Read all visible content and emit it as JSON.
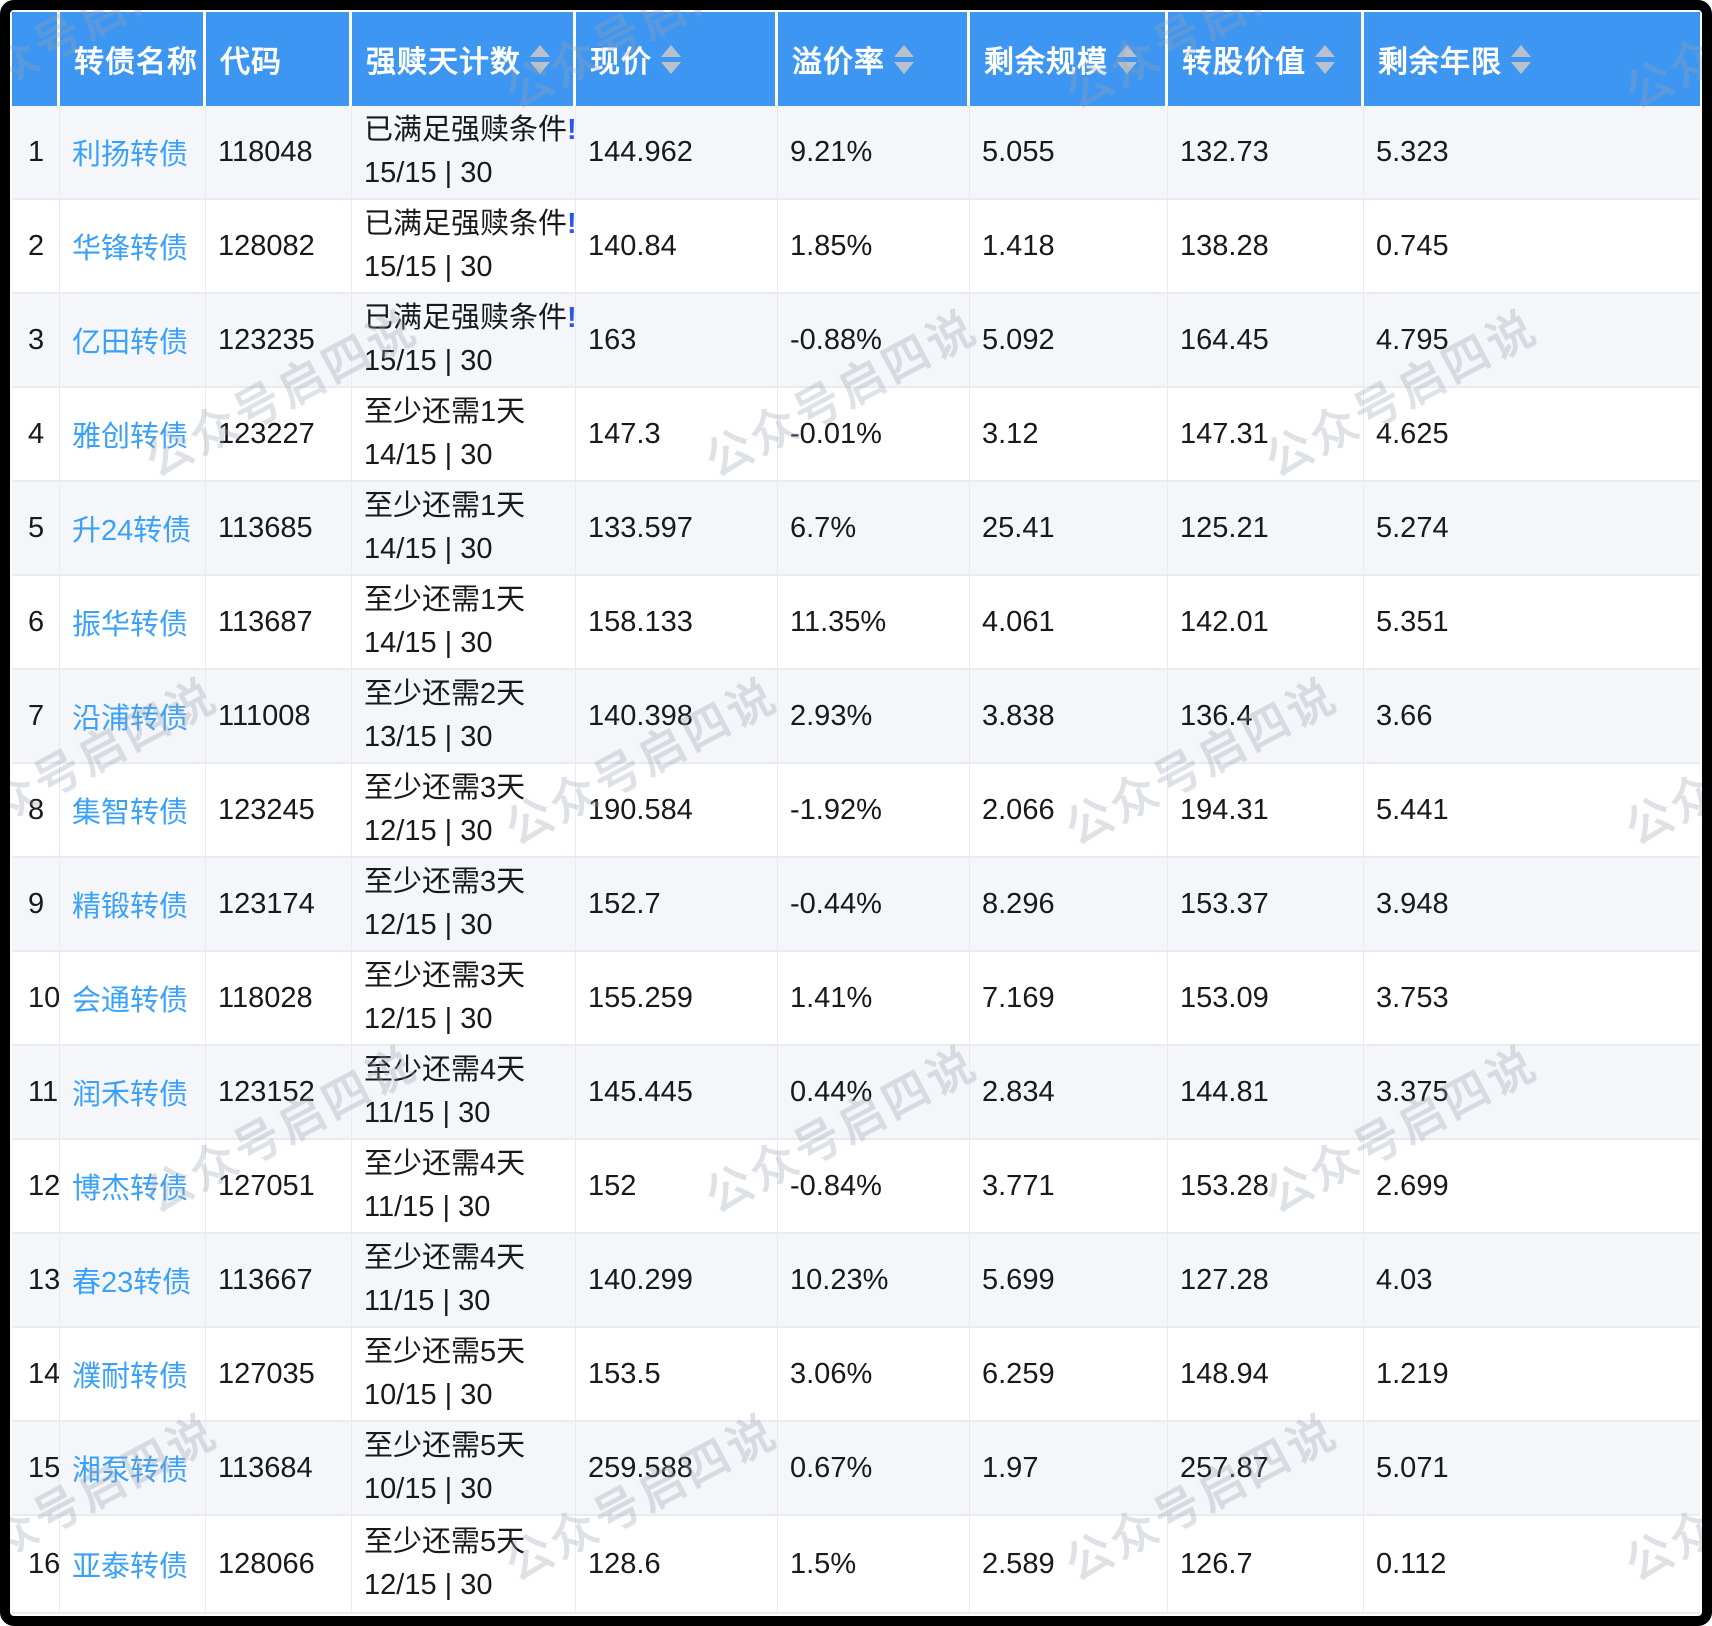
{
  "table": {
    "columns": [
      {
        "key": "index",
        "label": "",
        "sortable": false
      },
      {
        "key": "name",
        "label": "转债名称",
        "sortable": false
      },
      {
        "key": "code",
        "label": "代码",
        "sortable": false
      },
      {
        "key": "redeem",
        "label": "强赎天计数",
        "sortable": true
      },
      {
        "key": "price",
        "label": "现价",
        "sortable": true
      },
      {
        "key": "premium",
        "label": "溢价率",
        "sortable": true
      },
      {
        "key": "remain_size",
        "label": "剩余规模",
        "sortable": true
      },
      {
        "key": "conversion_value",
        "label": "转股价值",
        "sortable": true
      },
      {
        "key": "remain_years",
        "label": "剩余年限",
        "sortable": true
      }
    ],
    "rows": [
      {
        "index": "1",
        "name": "利扬转债",
        "code": "118048",
        "redeem_line1": "已满足强赎条件",
        "redeem_alert": "!",
        "redeem_line2": "15/15 | 30",
        "price": "144.962",
        "premium": "9.21%",
        "remain_size": "5.055",
        "conversion_value": "132.73",
        "remain_years": "5.323"
      },
      {
        "index": "2",
        "name": "华锋转债",
        "code": "128082",
        "redeem_line1": "已满足强赎条件",
        "redeem_alert": "!",
        "redeem_line2": "15/15 | 30",
        "price": "140.84",
        "premium": "1.85%",
        "remain_size": "1.418",
        "conversion_value": "138.28",
        "remain_years": "0.745"
      },
      {
        "index": "3",
        "name": "亿田转债",
        "code": "123235",
        "redeem_line1": "已满足强赎条件",
        "redeem_alert": "!",
        "redeem_line2": "15/15 | 30",
        "price": "163",
        "premium": "-0.88%",
        "remain_size": "5.092",
        "conversion_value": "164.45",
        "remain_years": "4.795"
      },
      {
        "index": "4",
        "name": "雅创转债",
        "code": "123227",
        "redeem_line1": "至少还需1天",
        "redeem_alert": "",
        "redeem_line2": "14/15 | 30",
        "price": "147.3",
        "premium": "-0.01%",
        "remain_size": "3.12",
        "conversion_value": "147.31",
        "remain_years": "4.625"
      },
      {
        "index": "5",
        "name": "升24转债",
        "code": "113685",
        "redeem_line1": "至少还需1天",
        "redeem_alert": "",
        "redeem_line2": "14/15 | 30",
        "price": "133.597",
        "premium": "6.7%",
        "remain_size": "25.41",
        "conversion_value": "125.21",
        "remain_years": "5.274"
      },
      {
        "index": "6",
        "name": "振华转债",
        "code": "113687",
        "redeem_line1": "至少还需1天",
        "redeem_alert": "",
        "redeem_line2": "14/15 | 30",
        "price": "158.133",
        "premium": "11.35%",
        "remain_size": "4.061",
        "conversion_value": "142.01",
        "remain_years": "5.351"
      },
      {
        "index": "7",
        "name": "沿浦转债",
        "code": "111008",
        "redeem_line1": "至少还需2天",
        "redeem_alert": "",
        "redeem_line2": "13/15 | 30",
        "price": "140.398",
        "premium": "2.93%",
        "remain_size": "3.838",
        "conversion_value": "136.4",
        "remain_years": "3.66"
      },
      {
        "index": "8",
        "name": "集智转债",
        "code": "123245",
        "redeem_line1": "至少还需3天",
        "redeem_alert": "",
        "redeem_line2": "12/15 | 30",
        "price": "190.584",
        "premium": "-1.92%",
        "remain_size": "2.066",
        "conversion_value": "194.31",
        "remain_years": "5.441"
      },
      {
        "index": "9",
        "name": "精锻转债",
        "code": "123174",
        "redeem_line1": "至少还需3天",
        "redeem_alert": "",
        "redeem_line2": "12/15 | 30",
        "price": "152.7",
        "premium": "-0.44%",
        "remain_size": "8.296",
        "conversion_value": "153.37",
        "remain_years": "3.948"
      },
      {
        "index": "10",
        "name": "会通转债",
        "code": "118028",
        "redeem_line1": "至少还需3天",
        "redeem_alert": "",
        "redeem_line2": "12/15 | 30",
        "price": "155.259",
        "premium": "1.41%",
        "remain_size": "7.169",
        "conversion_value": "153.09",
        "remain_years": "3.753"
      },
      {
        "index": "11",
        "name": "润禾转债",
        "code": "123152",
        "redeem_line1": "至少还需4天",
        "redeem_alert": "",
        "redeem_line2": "11/15 | 30",
        "price": "145.445",
        "premium": "0.44%",
        "remain_size": "2.834",
        "conversion_value": "144.81",
        "remain_years": "3.375"
      },
      {
        "index": "12",
        "name": "博杰转债",
        "code": "127051",
        "redeem_line1": "至少还需4天",
        "redeem_alert": "",
        "redeem_line2": "11/15 | 30",
        "price": "152",
        "premium": "-0.84%",
        "remain_size": "3.771",
        "conversion_value": "153.28",
        "remain_years": "2.699"
      },
      {
        "index": "13",
        "name": "春23转债",
        "code": "113667",
        "redeem_line1": "至少还需4天",
        "redeem_alert": "",
        "redeem_line2": "11/15 | 30",
        "price": "140.299",
        "premium": "10.23%",
        "remain_size": "5.699",
        "conversion_value": "127.28",
        "remain_years": "4.03"
      },
      {
        "index": "14",
        "name": "濮耐转债",
        "code": "127035",
        "redeem_line1": "至少还需5天",
        "redeem_alert": "",
        "redeem_line2": "10/15 | 30",
        "price": "153.5",
        "premium": "3.06%",
        "remain_size": "6.259",
        "conversion_value": "148.94",
        "remain_years": "1.219"
      },
      {
        "index": "15",
        "name": "湘泵转债",
        "code": "113684",
        "redeem_line1": "至少还需5天",
        "redeem_alert": "",
        "redeem_line2": "10/15 | 30",
        "price": "259.588",
        "premium": "0.67%",
        "remain_size": "1.97",
        "conversion_value": "257.87",
        "remain_years": "5.071"
      },
      {
        "index": "16",
        "name": "亚泰转债",
        "code": "128066",
        "redeem_line1": "至少还需5天",
        "redeem_alert": "",
        "redeem_line2": "12/15 | 30",
        "price": "128.6",
        "premium": "1.5%",
        "remain_size": "2.589",
        "conversion_value": "126.7",
        "remain_years": "0.112"
      }
    ]
  },
  "watermark": {
    "text": "公众号启四说"
  },
  "colors": {
    "header_bg": "#3d96f2",
    "link_blue": "#39a1fa",
    "alert_blue": "#2f54eb",
    "row_stripe": "#f4f6f9",
    "grid_border": "#e8ebf0",
    "sort_icon_gray": "#b9c2cc",
    "frame_black": "#000000"
  }
}
